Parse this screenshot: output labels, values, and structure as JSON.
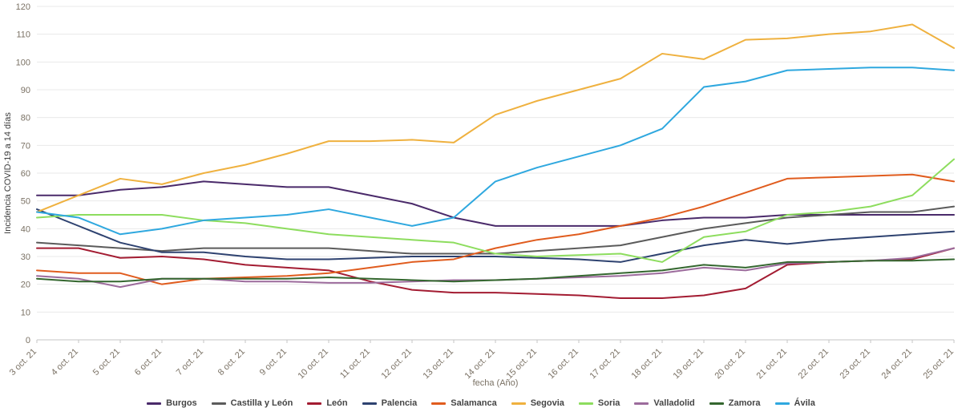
{
  "chart_data": {
    "type": "line",
    "title": "",
    "xlabel": "fecha (Año)",
    "ylabel": "Incidencia COVID-19 a 14 días",
    "ylim": [
      0,
      120
    ],
    "ytick_step": 10,
    "grid": true,
    "legend_position": "bottom",
    "categories": [
      "3 oct. 21",
      "4 oct. 21",
      "5 oct. 21",
      "6 oct. 21",
      "7 oct. 21",
      "8 oct. 21",
      "9 oct. 21",
      "10 oct. 21",
      "11 oct. 21",
      "12 oct. 21",
      "13 oct. 21",
      "14 oct. 21",
      "15 oct. 21",
      "16 oct. 21",
      "17 oct. 21",
      "18 oct. 21",
      "19 oct. 21",
      "20 oct. 21",
      "21 oct. 21",
      "22 oct. 21",
      "23 oct. 21",
      "24 oct. 21",
      "25 oct. 21"
    ],
    "series": [
      {
        "name": "Burgos",
        "color": "#4a2a6a",
        "values": [
          52,
          52,
          54,
          55,
          57,
          56,
          55,
          55,
          52,
          49,
          44,
          41,
          41,
          41,
          41,
          43,
          44,
          44,
          45,
          45,
          45,
          45,
          45
        ]
      },
      {
        "name": "Castilla y León",
        "color": "#5b5b5b",
        "values": [
          35,
          34,
          33,
          32,
          33,
          33,
          33,
          33,
          32,
          31,
          31,
          31,
          32,
          33,
          34,
          37,
          40,
          42,
          44,
          45,
          46,
          46,
          48
        ]
      },
      {
        "name": "León",
        "color": "#a31c32",
        "values": [
          33,
          33,
          29.5,
          30,
          29,
          27,
          26,
          25,
          21,
          18,
          17,
          17,
          16.5,
          16,
          15,
          15,
          16,
          18.5,
          27,
          28,
          28.5,
          29,
          33
        ]
      },
      {
        "name": "Palencia",
        "color": "#2e4270",
        "values": [
          47,
          41,
          35,
          31.5,
          31.5,
          30,
          29,
          29,
          29.5,
          30,
          30,
          30,
          29.5,
          29,
          28,
          31,
          34,
          36,
          34.5,
          36,
          37,
          38,
          39
        ]
      },
      {
        "name": "Salamanca",
        "color": "#e05c1e",
        "values": [
          25,
          24,
          24,
          20,
          22,
          22.5,
          23,
          24,
          26,
          28,
          29,
          33,
          36,
          38,
          41,
          44,
          48,
          53,
          58,
          58.5,
          59,
          59.5,
          57
        ]
      },
      {
        "name": "Segovia",
        "color": "#efb13f",
        "values": [
          46,
          52,
          58,
          56,
          60,
          63,
          67,
          71.5,
          71.5,
          72,
          71,
          81,
          86,
          90,
          94,
          103,
          101,
          108,
          108.5,
          110,
          111,
          113.5,
          105
        ]
      },
      {
        "name": "Soria",
        "color": "#8ddd5e",
        "values": [
          44,
          45,
          45,
          45,
          43,
          42,
          40,
          38,
          37,
          36,
          35,
          31,
          30,
          30.5,
          31,
          28,
          37,
          39,
          45,
          46,
          48,
          52,
          65
        ]
      },
      {
        "name": "Valladolid",
        "color": "#9c6b9c",
        "values": [
          23,
          22,
          19,
          22,
          22,
          21,
          21,
          20.5,
          20.5,
          21,
          21.5,
          21.5,
          22,
          22.5,
          23,
          24,
          26,
          25,
          27.5,
          28,
          28.5,
          29.5,
          33
        ]
      },
      {
        "name": "Zamora",
        "color": "#34672f",
        "values": [
          22,
          21,
          21,
          22,
          22,
          22,
          22,
          22.5,
          22,
          21.5,
          21,
          21.5,
          22,
          23,
          24,
          25,
          27,
          26,
          28,
          28,
          28.5,
          28.5,
          29
        ]
      },
      {
        "name": "Ávila",
        "color": "#2fa8df",
        "values": [
          46,
          44,
          38,
          40,
          43,
          44,
          45,
          47,
          44,
          41,
          44,
          57,
          62,
          66,
          70,
          76,
          91,
          93,
          97,
          97.5,
          98,
          98,
          97
        ]
      }
    ]
  }
}
